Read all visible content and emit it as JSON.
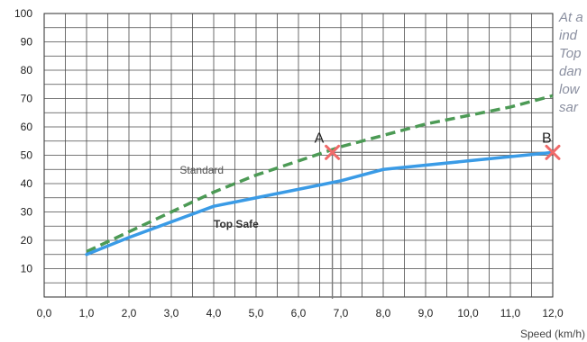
{
  "side_note_lines": [
    "At a",
    "ind",
    "Top",
    "dan",
    "low",
    "sar"
  ],
  "chart_data": {
    "type": "line",
    "title": "",
    "xlabel": "Speed (km/h)",
    "ylabel": "",
    "xlim": [
      0,
      12
    ],
    "ylim": [
      0,
      100
    ],
    "x_ticks": [
      "0,0",
      "1,0",
      "2,0",
      "3,0",
      "4,0",
      "5,0",
      "6,0",
      "7,0",
      "8,0",
      "9,0",
      "10,0",
      "11,0",
      "12,0"
    ],
    "y_ticks": [
      "10",
      "20",
      "30",
      "40",
      "50",
      "60",
      "70",
      "80",
      "90",
      "100"
    ],
    "grid": true,
    "series": [
      {
        "name": "Standard",
        "color": "#4c9a55",
        "style": "dashed",
        "x": [
          1.0,
          2.0,
          3.0,
          4.0,
          5.0,
          6.0,
          7.0,
          8.0,
          9.0,
          10.0,
          11.0,
          12.0
        ],
        "y": [
          16,
          23,
          30,
          37,
          43,
          48,
          53,
          57,
          61,
          64,
          67,
          71
        ]
      },
      {
        "name": "Top Safe",
        "color": "#3a9be6",
        "style": "solid",
        "x": [
          1.0,
          2.0,
          4.0,
          7.0,
          8.0,
          10.0,
          12.0
        ],
        "y": [
          15,
          21,
          32,
          41,
          45,
          48,
          51
        ]
      }
    ],
    "markers": [
      {
        "label": "A",
        "x": 6.8,
        "y": 51,
        "color": "#f06a6a"
      },
      {
        "label": "B",
        "x": 12.0,
        "y": 51,
        "color": "#f06a6a"
      }
    ],
    "guide_color": "#7a7a7a"
  }
}
